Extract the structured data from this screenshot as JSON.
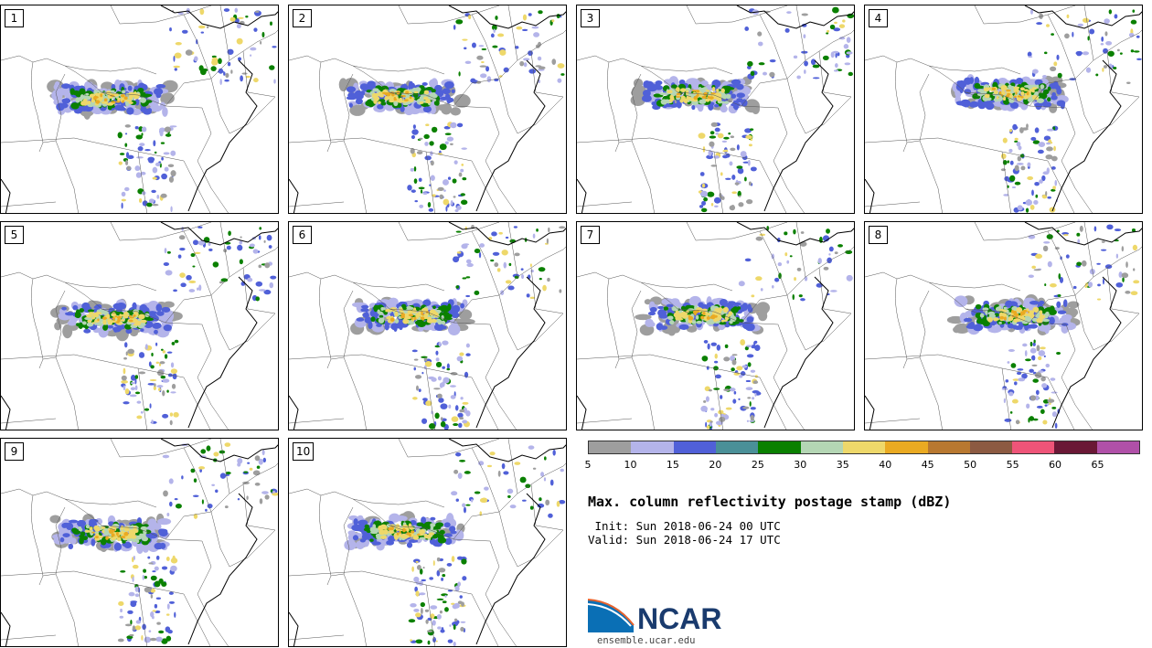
{
  "panels": [
    {
      "label": "1",
      "seed": 11,
      "shiftx": 0,
      "shifty": 0
    },
    {
      "label": "2",
      "seed": 23,
      "shiftx": 4,
      "shifty": -2
    },
    {
      "label": "3",
      "seed": 37,
      "shiftx": 10,
      "shifty": -4
    },
    {
      "label": "4",
      "seed": 41,
      "shiftx": 40,
      "shifty": -6
    },
    {
      "label": "5",
      "seed": 53,
      "shiftx": 6,
      "shifty": 4
    },
    {
      "label": "6",
      "seed": 67,
      "shiftx": 14,
      "shifty": 0
    },
    {
      "label": "7",
      "seed": 71,
      "shiftx": 18,
      "shifty": 0
    },
    {
      "label": "8",
      "seed": 83,
      "shiftx": 44,
      "shifty": 0
    },
    {
      "label": "9",
      "seed": 97,
      "shiftx": 2,
      "shifty": 2
    },
    {
      "label": "10",
      "seed": 101,
      "shiftx": 6,
      "shifty": 0
    }
  ],
  "colorbar": {
    "colors": [
      "#9e9e9e",
      "#b4b4ea",
      "#5060d8",
      "#4a9098",
      "#0a8000",
      "#b4d6b4",
      "#eed86a",
      "#eaaa22",
      "#b87830",
      "#8c5a42",
      "#ee5478",
      "#6a1836",
      "#b050a8"
    ],
    "ticks": [
      "5",
      "10",
      "15",
      "20",
      "25",
      "30",
      "35",
      "40",
      "45",
      "50",
      "55",
      "60",
      "65"
    ]
  },
  "title": "Max. column reflectivity postage stamp (dBZ)",
  "init": " Init: Sun 2018-06-24 00 UTC",
  "valid": "Valid: Sun 2018-06-24 17 UTC",
  "logo": {
    "text": "NCAR",
    "url": "ensemble.ucar.edu"
  }
}
